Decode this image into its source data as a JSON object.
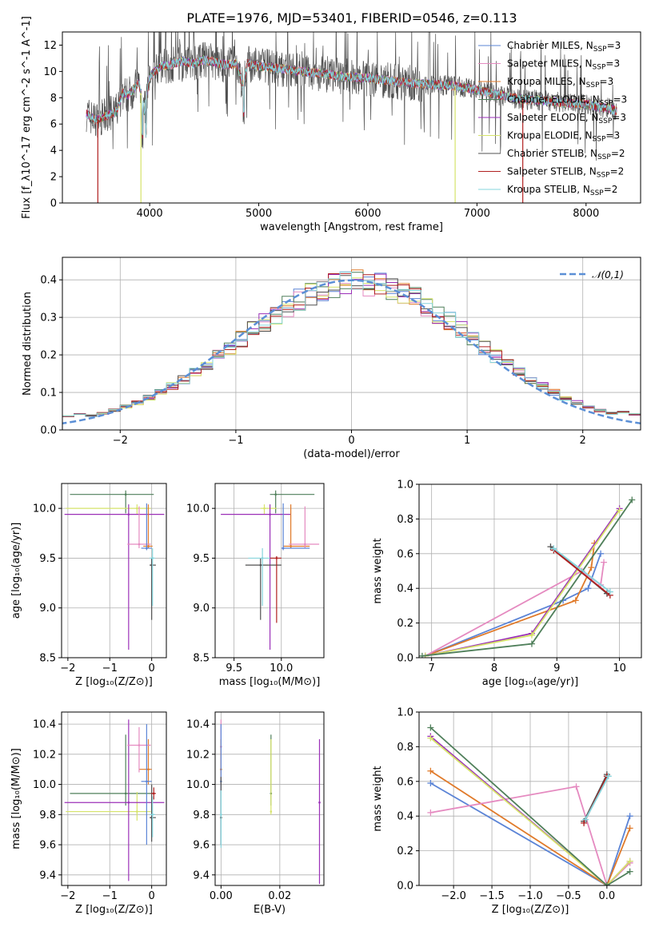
{
  "title": "PLATE=1976, MJD=53401, FIBERID=0546, z=0.113",
  "colors": {
    "chabrier_miles": "#5b84d6",
    "salpeter_miles": "#e58ac0",
    "kroupa_miles": "#e07a2a",
    "chabrier_elodie": "#4f7f5a",
    "salpeter_elodie": "#9b30b8",
    "kroupa_elodie": "#d6e36a",
    "chabrier_stelib": "#505050",
    "salpeter_stelib": "#b02020",
    "kroupa_stelib": "#86d4dc",
    "normal_curve": "#5b8fd6"
  },
  "chart_data": [
    {
      "id": "spectrum",
      "type": "line",
      "xlabel": "wavelength [Angstrom, rest frame]",
      "ylabel": "Flux [f_λ10^-17 erg cm^-2 s^-1 A^-1]",
      "xlim": [
        3200,
        8500
      ],
      "ylim": [
        0,
        13
      ],
      "xticks": [
        4000,
        5000,
        6000,
        7000,
        8000
      ],
      "yticks": [
        0,
        2,
        4,
        6,
        8,
        10,
        12
      ],
      "legend_position": "right",
      "legend": [
        {
          "name": "Chabrier MILES, N_SSP=3",
          "color_key": "chabrier_miles"
        },
        {
          "name": "Salpeter MILES, N_SSP=3",
          "color_key": "salpeter_miles"
        },
        {
          "name": "Kroupa MILES, N_SSP=3",
          "color_key": "kroupa_miles"
        },
        {
          "name": "Chabrier ELODIE, N_SSP=3",
          "color_key": "chabrier_elodie"
        },
        {
          "name": "Salpeter ELODIE, N_SSP=3",
          "color_key": "salpeter_elodie"
        },
        {
          "name": "Kroupa ELODIE, N_SSP=3",
          "color_key": "kroupa_elodie"
        },
        {
          "name": "Chabrier STELIB, N_SSP=2",
          "color_key": "chabrier_stelib"
        },
        {
          "name": "Salpeter STELIB, N_SSP=2",
          "color_key": "salpeter_stelib"
        },
        {
          "name": "Kroupa STELIB, N_SSP=2",
          "color_key": "kroupa_stelib"
        }
      ],
      "envelope": {
        "x": [
          3420,
          3500,
          3600,
          3700,
          3750,
          3800,
          3850,
          3900,
          3950,
          4000,
          4100,
          4200,
          4300,
          4400,
          4500,
          4600,
          4700,
          4800,
          4850,
          4900,
          5000,
          5200,
          5400,
          5600,
          5800,
          6000,
          6200,
          6400,
          6600,
          6800,
          7000,
          7200,
          7400,
          7600,
          7800,
          8000,
          8200,
          8280
        ],
        "y": [
          6.8,
          6.3,
          6.6,
          7.0,
          8.4,
          8.2,
          8.6,
          9.2,
          7.0,
          9.6,
          10.4,
          10.5,
          10.8,
          10.6,
          10.9,
          10.7,
          10.5,
          10.6,
          9.0,
          10.6,
          10.4,
          10.2,
          10.0,
          9.8,
          9.6,
          9.5,
          9.3,
          9.1,
          9.0,
          8.9,
          8.6,
          8.2,
          7.9,
          7.8,
          7.6,
          7.5,
          7.2,
          7.0
        ]
      },
      "dips": [
        {
          "x": 3525,
          "y_min": 0,
          "series": "salpeter_stelib"
        },
        {
          "x": 3920,
          "y_min": 0,
          "series": "kroupa_elodie"
        },
        {
          "x": 6800,
          "y_min": 0,
          "series": "kroupa_elodie"
        },
        {
          "x": 7420,
          "y_min": 0,
          "series": "salpeter_stelib"
        }
      ]
    },
    {
      "id": "residuals",
      "type": "histogram",
      "xlabel": "(data-model)/error",
      "ylabel": "Normed distribution",
      "xlim": [
        -2.5,
        2.5
      ],
      "ylim": [
        0,
        0.46
      ],
      "xticks": [
        -2,
        -1,
        0,
        1,
        2
      ],
      "yticks": [
        0.0,
        0.1,
        0.2,
        0.3,
        0.4
      ],
      "legend_position": "top-right",
      "legend": [
        {
          "name": "𝒩(0,1)",
          "color_key": "normal_curve",
          "style": "dashed"
        }
      ],
      "bin_width": 0.1
    },
    {
      "id": "age_vs_Z",
      "type": "errorbar",
      "xlabel": "Z [log₁₀(Z/Z⊙)]",
      "ylabel": "age  [log₁₀(age/yr)]",
      "xlim": [
        -2.15,
        0.35
      ],
      "ylim": [
        8.5,
        10.25
      ],
      "xticks": [
        -2,
        -1,
        0
      ],
      "yticks": [
        8.5,
        9.0,
        9.5,
        10.0
      ],
      "points": [
        {
          "series": "chabrier_elodie",
          "x": -0.62,
          "y": 10.14,
          "xlo": -1.95,
          "xhi": 0.05,
          "ylo": 9.95,
          "yhi": 10.18
        },
        {
          "series": "kroupa_elodie",
          "x": -0.35,
          "y": 10.0,
          "xlo": -2.05,
          "xhi": -0.02,
          "ylo": 9.94,
          "yhi": 10.04
        },
        {
          "series": "salpeter_elodie",
          "x": -0.55,
          "y": 9.94,
          "xlo": -2.08,
          "xhi": 0.3,
          "ylo": 8.58,
          "yhi": 10.04
        },
        {
          "series": "kroupa_miles",
          "x": -0.08,
          "y": 9.62,
          "xlo": -0.2,
          "xhi": 0.02,
          "ylo": 9.6,
          "yhi": 10.04
        },
        {
          "series": "salpeter_miles",
          "x": -0.3,
          "y": 9.64,
          "xlo": -0.58,
          "xhi": -0.02,
          "ylo": 9.6,
          "yhi": 10.02
        },
        {
          "series": "chabrier_miles",
          "x": -0.12,
          "y": 9.6,
          "xlo": -0.25,
          "xhi": 0.0,
          "ylo": 9.58,
          "yhi": 10.05
        },
        {
          "series": "chabrier_stelib",
          "x": 0.0,
          "y": 9.43,
          "xlo": -0.05,
          "xhi": 0.1,
          "ylo": 8.88,
          "yhi": 9.5
        },
        {
          "series": "kroupa_stelib",
          "x": 0.02,
          "y": 9.5,
          "xlo": -0.05,
          "xhi": 0.08,
          "ylo": 9.02,
          "yhi": 9.6
        }
      ]
    },
    {
      "id": "age_vs_mass",
      "type": "errorbar",
      "xlabel": "mass [log₁₀(M/M⊙)]",
      "ylabel": "",
      "xlim": [
        9.3,
        10.45
      ],
      "ylim": [
        8.5,
        10.25
      ],
      "xticks": [
        9.5,
        10.0
      ],
      "yticks": [
        8.5,
        9.0,
        9.5,
        10.0
      ],
      "points": [
        {
          "series": "chabrier_elodie",
          "x": 9.94,
          "y": 10.14,
          "xlo": 9.88,
          "xhi": 10.35,
          "ylo": 9.95,
          "yhi": 10.18
        },
        {
          "series": "kroupa_elodie",
          "x": 9.82,
          "y": 10.0,
          "xlo": 9.78,
          "xhi": 9.95,
          "ylo": 9.94,
          "yhi": 10.04
        },
        {
          "series": "salpeter_elodie",
          "x": 9.88,
          "y": 9.94,
          "xlo": 9.36,
          "xhi": 10.1,
          "ylo": 8.58,
          "yhi": 10.04
        },
        {
          "series": "kroupa_miles",
          "x": 10.1,
          "y": 9.62,
          "xlo": 10.02,
          "xhi": 10.3,
          "ylo": 9.6,
          "yhi": 10.04
        },
        {
          "series": "salpeter_miles",
          "x": 10.25,
          "y": 9.64,
          "xlo": 10.08,
          "xhi": 10.4,
          "ylo": 9.6,
          "yhi": 10.02
        },
        {
          "series": "chabrier_miles",
          "x": 10.02,
          "y": 9.6,
          "xlo": 10.0,
          "xhi": 10.3,
          "ylo": 9.58,
          "yhi": 10.05
        },
        {
          "series": "chabrier_stelib",
          "x": 9.78,
          "y": 9.43,
          "xlo": 9.62,
          "xhi": 10.0,
          "ylo": 8.88,
          "yhi": 9.5
        },
        {
          "series": "kroupa_stelib",
          "x": 9.8,
          "y": 9.5,
          "xlo": 9.65,
          "xhi": 9.92,
          "ylo": 9.02,
          "yhi": 9.6
        },
        {
          "series": "salpeter_stelib",
          "x": 9.95,
          "y": 9.5,
          "xlo": 9.88,
          "xhi": 10.0,
          "ylo": 8.85,
          "yhi": 9.52
        }
      ]
    },
    {
      "id": "weight_vs_age",
      "type": "line",
      "xlabel": "age  [log₁₀(age/yr)]",
      "ylabel": "mass weight",
      "xlim": [
        6.8,
        10.35
      ],
      "ylim": [
        0,
        1.0
      ],
      "xticks": [
        7,
        8,
        9,
        10
      ],
      "yticks": [
        0.0,
        0.2,
        0.4,
        0.6,
        0.8,
        1.0
      ],
      "series": [
        {
          "key": "chabrier_miles",
          "x": [
            6.9,
            9.1,
            9.5,
            9.7
          ],
          "y": [
            0.01,
            0.33,
            0.4,
            0.6
          ]
        },
        {
          "key": "kroupa_miles",
          "x": [
            6.9,
            9.3,
            9.55,
            9.6
          ],
          "y": [
            0.01,
            0.33,
            0.52,
            0.66
          ]
        },
        {
          "key": "salpeter_miles",
          "x": [
            6.9,
            9.4,
            9.7,
            9.75
          ],
          "y": [
            0.01,
            0.5,
            0.42,
            0.55
          ]
        },
        {
          "key": "salpeter_elodie",
          "x": [
            6.9,
            8.6,
            10.0
          ],
          "y": [
            0.01,
            0.14,
            0.86
          ]
        },
        {
          "key": "kroupa_elodie",
          "x": [
            6.9,
            8.6,
            10.0
          ],
          "y": [
            0.01,
            0.13,
            0.85
          ]
        },
        {
          "key": "chabrier_elodie",
          "x": [
            6.85,
            8.6,
            10.2
          ],
          "y": [
            0.01,
            0.08,
            0.91
          ]
        },
        {
          "key": "chabrier_stelib",
          "x": [
            8.9,
            9.8
          ],
          "y": [
            0.64,
            0.37
          ]
        },
        {
          "key": "salpeter_stelib",
          "x": [
            8.95,
            9.85
          ],
          "y": [
            0.62,
            0.36
          ]
        },
        {
          "key": "kroupa_stelib",
          "x": [
            8.95,
            9.85
          ],
          "y": [
            0.63,
            0.38
          ]
        }
      ]
    },
    {
      "id": "mass_vs_Z",
      "type": "errorbar",
      "xlabel": "Z [log₁₀(Z/Z⊙)]",
      "ylabel": "mass [log₁₀(M/M⊙)]",
      "xlim": [
        -2.15,
        0.35
      ],
      "ylim": [
        9.33,
        10.48
      ],
      "xticks": [
        -2,
        -1,
        0
      ],
      "yticks": [
        9.4,
        9.6,
        9.8,
        10.0,
        10.2,
        10.4
      ],
      "points": [
        {
          "series": "chabrier_elodie",
          "x": -0.62,
          "y": 9.94,
          "xlo": -1.95,
          "xhi": 0.05,
          "ylo": 9.86,
          "yhi": 10.33
        },
        {
          "series": "kroupa_elodie",
          "x": -0.35,
          "y": 9.82,
          "xlo": -2.05,
          "xhi": -0.02,
          "ylo": 9.76,
          "yhi": 9.95
        },
        {
          "series": "salpeter_elodie",
          "x": -0.55,
          "y": 9.88,
          "xlo": -2.08,
          "xhi": 0.3,
          "ylo": 9.36,
          "yhi": 10.43
        },
        {
          "series": "kroupa_miles",
          "x": -0.08,
          "y": 10.1,
          "xlo": -0.3,
          "xhi": 0.0,
          "ylo": 10.0,
          "yhi": 10.3
        },
        {
          "series": "salpeter_miles",
          "x": -0.3,
          "y": 10.26,
          "xlo": -0.58,
          "xhi": -0.02,
          "ylo": 10.08,
          "yhi": 10.38
        },
        {
          "series": "chabrier_miles",
          "x": -0.12,
          "y": 10.02,
          "xlo": -0.25,
          "xhi": 0.0,
          "ylo": 9.6,
          "yhi": 10.4
        },
        {
          "series": "chabrier_stelib",
          "x": 0.0,
          "y": 9.78,
          "xlo": -0.05,
          "xhi": 0.1,
          "ylo": 9.62,
          "yhi": 10.0
        },
        {
          "series": "kroupa_stelib",
          "x": 0.02,
          "y": 9.8,
          "xlo": -0.05,
          "xhi": 0.08,
          "ylo": 9.65,
          "yhi": 9.92
        },
        {
          "series": "salpeter_stelib",
          "x": 0.05,
          "y": 9.94,
          "xlo": -0.02,
          "xhi": 0.1,
          "ylo": 9.9,
          "yhi": 9.98
        }
      ]
    },
    {
      "id": "mass_vs_ebv",
      "type": "errorbar",
      "xlabel": "E(B-V)",
      "ylabel": "",
      "xlim": [
        -0.002,
        0.035
      ],
      "ylim": [
        9.33,
        10.48
      ],
      "xticks": [
        0.0,
        0.02
      ],
      "yticks": [
        9.4,
        9.6,
        9.8,
        10.0,
        10.2,
        10.4
      ],
      "points": [
        {
          "series": "salpeter_miles",
          "x": 0.0,
          "y": 10.25,
          "ylo": 10.08,
          "yhi": 10.43
        },
        {
          "series": "kroupa_miles",
          "x": 0.0,
          "y": 10.1,
          "ylo": 10.0,
          "yhi": 10.3
        },
        {
          "series": "chabrier_miles",
          "x": 0.0,
          "y": 10.02,
          "ylo": 9.6,
          "yhi": 10.4
        },
        {
          "series": "chabrier_stelib",
          "x": 0.0,
          "y": 9.78,
          "ylo": 9.6,
          "yhi": 10.05
        },
        {
          "series": "kroupa_stelib",
          "x": 0.0,
          "y": 9.8,
          "ylo": 9.58,
          "yhi": 9.96
        },
        {
          "series": "chabrier_elodie",
          "x": 0.017,
          "y": 9.94,
          "ylo": 9.86,
          "yhi": 10.33
        },
        {
          "series": "kroupa_elodie",
          "x": 0.017,
          "y": 9.82,
          "ylo": 9.8,
          "yhi": 10.3
        },
        {
          "series": "salpeter_elodie",
          "x": 0.0335,
          "y": 9.88,
          "ylo": 9.34,
          "yhi": 10.3
        }
      ]
    },
    {
      "id": "weight_vs_Z",
      "type": "line",
      "xlabel": "Z [log₁₀(Z/Z⊙)]",
      "ylabel": "mass weight",
      "xlim": [
        -2.45,
        0.45
      ],
      "ylim": [
        0,
        1.0
      ],
      "xticks": [
        -2.0,
        -1.5,
        -1.0,
        -0.5,
        0.0
      ],
      "yticks": [
        0.0,
        0.2,
        0.4,
        0.6,
        0.8,
        1.0
      ],
      "series": [
        {
          "key": "chabrier_miles",
          "x": [
            -2.3,
            0.0,
            0.3
          ],
          "y": [
            0.59,
            0.0,
            0.4
          ]
        },
        {
          "key": "kroupa_miles",
          "x": [
            -2.3,
            0.0,
            0.3
          ],
          "y": [
            0.66,
            0.0,
            0.33
          ]
        },
        {
          "key": "salpeter_miles",
          "x": [
            -2.3,
            -0.4,
            0.0,
            0.3
          ],
          "y": [
            0.42,
            0.57,
            0.0,
            0.13
          ]
        },
        {
          "key": "salpeter_elodie",
          "x": [
            -2.3,
            0.0,
            0.3
          ],
          "y": [
            0.86,
            0.0,
            0.14
          ]
        },
        {
          "key": "kroupa_elodie",
          "x": [
            -2.3,
            0.0,
            0.3
          ],
          "y": [
            0.85,
            0.0,
            0.14
          ]
        },
        {
          "key": "chabrier_elodie",
          "x": [
            -2.3,
            0.0,
            0.3
          ],
          "y": [
            0.91,
            0.0,
            0.08
          ]
        },
        {
          "key": "chabrier_stelib",
          "x": [
            -0.3,
            0.0
          ],
          "y": [
            0.37,
            0.64
          ]
        },
        {
          "key": "salpeter_stelib",
          "x": [
            -0.3,
            0.0
          ],
          "y": [
            0.36,
            0.63
          ]
        },
        {
          "key": "kroupa_stelib",
          "x": [
            -0.28,
            0.02
          ],
          "y": [
            0.38,
            0.63
          ]
        }
      ]
    }
  ]
}
